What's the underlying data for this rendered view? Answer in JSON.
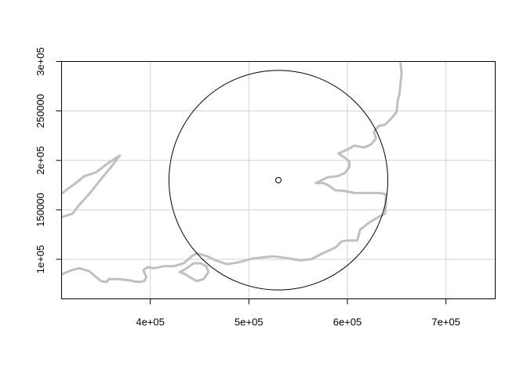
{
  "chart_data": {
    "type": "map",
    "xlim": [
      310000,
      750000
    ],
    "ylim": [
      60000,
      300000
    ],
    "grid": true,
    "x_ticks": [
      {
        "value": 400000,
        "label": "4e+05"
      },
      {
        "value": 500000,
        "label": "5e+05"
      },
      {
        "value": 600000,
        "label": "6e+05"
      },
      {
        "value": 700000,
        "label": "7e+05"
      }
    ],
    "y_ticks": [
      {
        "value": 100000,
        "label": "1e+05"
      },
      {
        "value": 150000,
        "label": "150000"
      },
      {
        "value": 200000,
        "label": "2e+05"
      },
      {
        "value": 250000,
        "label": "250000"
      },
      {
        "value": 300000,
        "label": "3e+05"
      }
    ],
    "colors": {
      "coastline": "#c0c0c0",
      "grid": "#d3d3d3",
      "circle": "#000000",
      "axes": "#000000"
    },
    "point": {
      "x": 530000,
      "y": 180000
    },
    "circle": {
      "center_x": 530000,
      "center_y": 180000,
      "radius": 111000
    },
    "coastlines": [
      {
        "name": "south-coast",
        "points": [
          [
            311000,
            85000
          ],
          [
            320000,
            89000
          ],
          [
            328000,
            91000
          ],
          [
            338000,
            88000
          ],
          [
            345000,
            82000
          ],
          [
            350000,
            78000
          ],
          [
            356000,
            77000
          ],
          [
            358000,
            80000
          ],
          [
            366000,
            80000
          ],
          [
            377000,
            79000
          ],
          [
            388000,
            77000
          ],
          [
            394000,
            78000
          ],
          [
            396000,
            82000
          ],
          [
            393000,
            89000
          ],
          [
            397000,
            92000
          ],
          [
            404000,
            91000
          ],
          [
            414000,
            93000
          ],
          [
            424000,
            93000
          ],
          [
            434000,
            96000
          ],
          [
            442000,
            103000
          ],
          [
            447000,
            106000
          ],
          [
            458000,
            103000
          ],
          [
            466000,
            99000
          ],
          [
            478000,
            95000
          ],
          [
            490000,
            97000
          ],
          [
            505000,
            101000
          ],
          [
            525000,
            103000
          ],
          [
            540000,
            101000
          ],
          [
            552000,
            99000
          ],
          [
            563000,
            100000
          ],
          [
            575000,
            106000
          ],
          [
            588000,
            112000
          ],
          [
            594000,
            118000
          ],
          [
            600000,
            119000
          ],
          [
            610000,
            119000
          ],
          [
            613000,
            130000
          ],
          [
            622000,
            137000
          ],
          [
            632000,
            143000
          ],
          [
            638000,
            146000
          ],
          [
            639000,
            154000
          ],
          [
            639000,
            166000
          ],
          [
            632000,
            167000
          ],
          [
            620000,
            167000
          ],
          [
            607000,
            167000
          ],
          [
            597000,
            169000
          ],
          [
            587000,
            170000
          ],
          [
            582000,
            174000
          ],
          [
            576000,
            177000
          ],
          [
            568000,
            177000
          ],
          [
            580000,
            183000
          ],
          [
            590000,
            184000
          ],
          [
            597000,
            187000
          ],
          [
            602000,
            193000
          ],
          [
            602000,
            199000
          ],
          [
            597000,
            203000
          ],
          [
            591000,
            207000
          ],
          [
            600000,
            211000
          ],
          [
            607000,
            215000
          ],
          [
            617000,
            213000
          ],
          [
            624000,
            216000
          ],
          [
            629000,
            222000
          ],
          [
            627000,
            229000
          ],
          [
            632000,
            235000
          ],
          [
            638000,
            236000
          ],
          [
            645000,
            243000
          ],
          [
            650000,
            249000
          ],
          [
            651000,
            260000
          ],
          [
            653000,
            268000
          ],
          [
            654000,
            279000
          ],
          [
            655000,
            288000
          ],
          [
            654000,
            298000
          ]
        ]
      },
      {
        "name": "isle-of-wight",
        "points": [
          [
            430000,
            87000
          ],
          [
            437000,
            91000
          ],
          [
            444000,
            96000
          ],
          [
            451000,
            96000
          ],
          [
            457000,
            93000
          ],
          [
            459000,
            87000
          ],
          [
            454000,
            80000
          ],
          [
            447000,
            78000
          ],
          [
            440000,
            82000
          ],
          [
            435000,
            85000
          ],
          [
            430000,
            87000
          ]
        ]
      },
      {
        "name": "bristol-channel",
        "points": [
          [
            311000,
            143000
          ],
          [
            321000,
            146000
          ],
          [
            328000,
            155000
          ],
          [
            338000,
            166000
          ],
          [
            350000,
            181000
          ],
          [
            360000,
            193000
          ],
          [
            369000,
            205000
          ],
          [
            357000,
            197000
          ],
          [
            345000,
            188000
          ],
          [
            333000,
            184000
          ],
          [
            323000,
            176000
          ],
          [
            316000,
            171000
          ],
          [
            311000,
            167000
          ]
        ]
      }
    ]
  }
}
